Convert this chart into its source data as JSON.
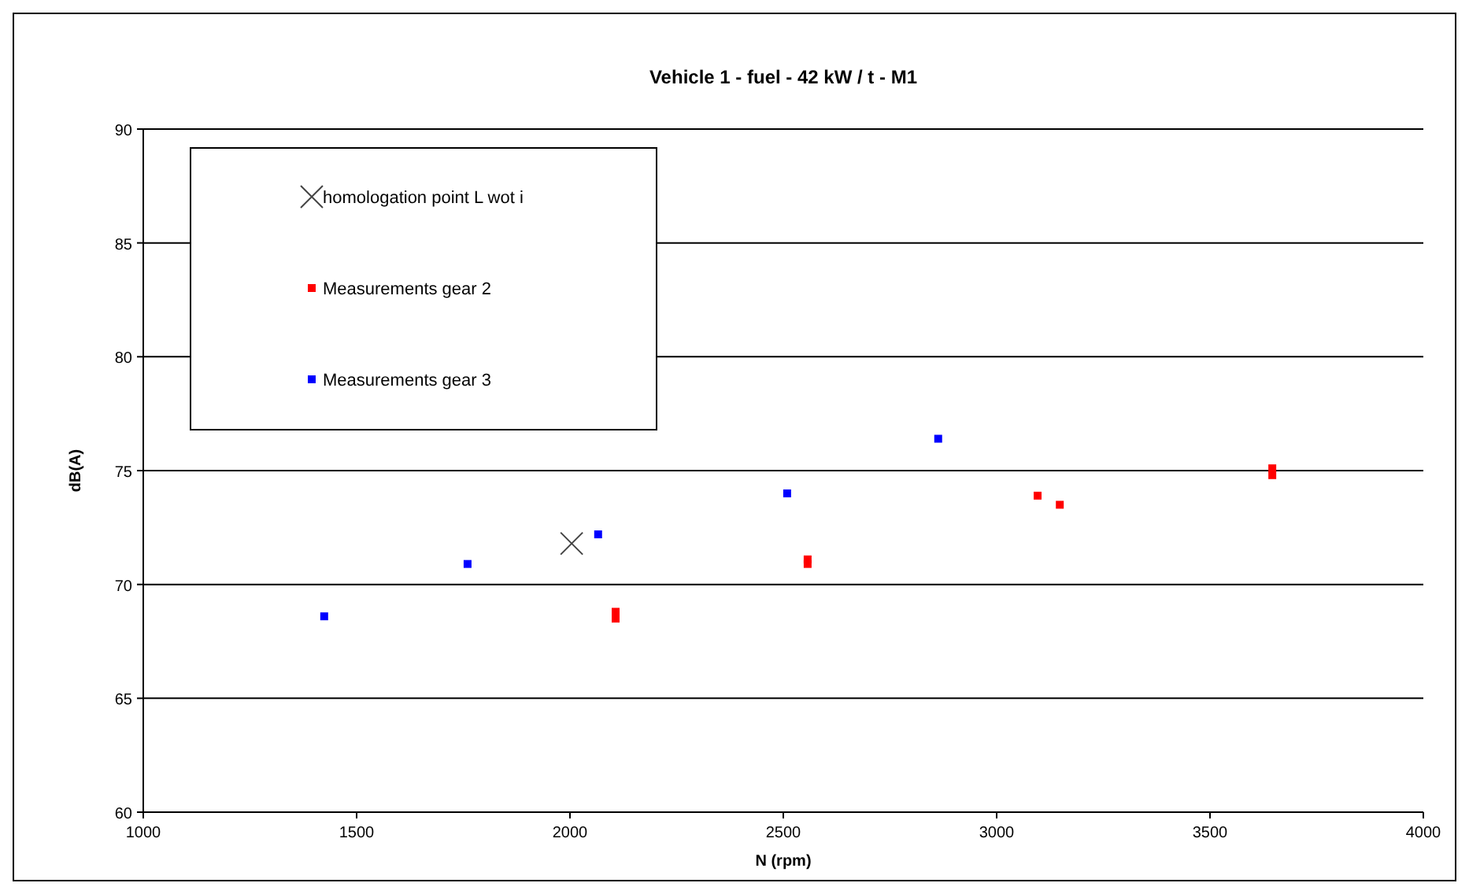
{
  "chart_data": {
    "type": "scatter",
    "title": "Vehicle 1 - fuel - 42 kW / t - M1",
    "xlabel": "N (rpm)",
    "ylabel": "dB(A)",
    "xlim": [
      1000,
      4000
    ],
    "xticks": [
      1000,
      1500,
      2000,
      2500,
      3000,
      3500,
      4000
    ],
    "ylim": [
      60,
      90
    ],
    "yticks": [
      60,
      65,
      70,
      75,
      80,
      85,
      90
    ],
    "grid": "y",
    "legend": "top left",
    "series": [
      {
        "name": "homologation point L wot i",
        "color": "#444444",
        "marker": "cross",
        "x": [
          2004
        ],
        "values": [
          71.8
        ]
      },
      {
        "name": "Measurements gear 2",
        "color": "#ff0000",
        "marker": "square",
        "x": [
          2107,
          2107,
          2557,
          2557,
          3096,
          3148,
          3646,
          3646
        ],
        "values": [
          68.8,
          68.5,
          71.1,
          70.9,
          73.9,
          73.5,
          75.1,
          74.8
        ]
      },
      {
        "name": "Measurements gear  3",
        "color": "#0000ff",
        "marker": "square",
        "x": [
          1424,
          1760,
          2066,
          2509,
          2863
        ],
        "values": [
          68.6,
          70.9,
          72.2,
          74.0,
          76.4
        ]
      }
    ]
  }
}
